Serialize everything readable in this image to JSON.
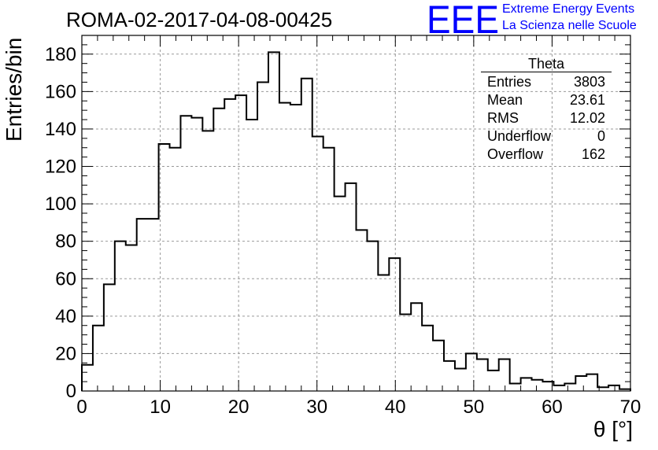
{
  "header": {
    "title": "ROMA-02-2017-04-08-00425",
    "logo_letters": "EEE",
    "logo_line1": "Extreme Energy Events",
    "logo_line2": "La Scienza nelle Scuole",
    "logo_color": "#0000ff"
  },
  "stats_box": {
    "title": "Theta",
    "rows": [
      {
        "label": "Entries",
        "value": "3803"
      },
      {
        "label": "Mean",
        "value": "23.61"
      },
      {
        "label": "RMS",
        "value": "12.02"
      },
      {
        "label": "Underflow",
        "value": "0"
      },
      {
        "label": "Overflow",
        "value": "162"
      }
    ]
  },
  "chart_data": {
    "type": "bar",
    "style": "step-histogram",
    "title": "ROMA-02-2017-04-08-00425",
    "xlabel": "θ [°]",
    "ylabel": "Entries/bin",
    "xlim": [
      0,
      70
    ],
    "ylim": [
      0,
      190
    ],
    "grid": true,
    "bin_width": 1.4,
    "x_ticks": [
      0,
      10,
      20,
      30,
      40,
      50,
      60,
      70
    ],
    "y_ticks": [
      0,
      20,
      40,
      60,
      80,
      100,
      120,
      140,
      160,
      180
    ],
    "bin_edges_start": 0,
    "values": [
      14,
      35,
      57,
      80,
      78,
      92,
      92,
      132,
      130,
      147,
      146,
      139,
      151,
      156,
      158,
      145,
      165,
      181,
      154,
      153,
      167,
      136,
      130,
      104,
      111,
      86,
      80,
      62,
      71,
      41,
      47,
      35,
      27,
      16,
      12,
      20,
      17,
      11,
      17,
      4,
      7,
      6,
      5,
      3,
      4,
      8,
      9,
      2,
      3,
      1
    ]
  }
}
